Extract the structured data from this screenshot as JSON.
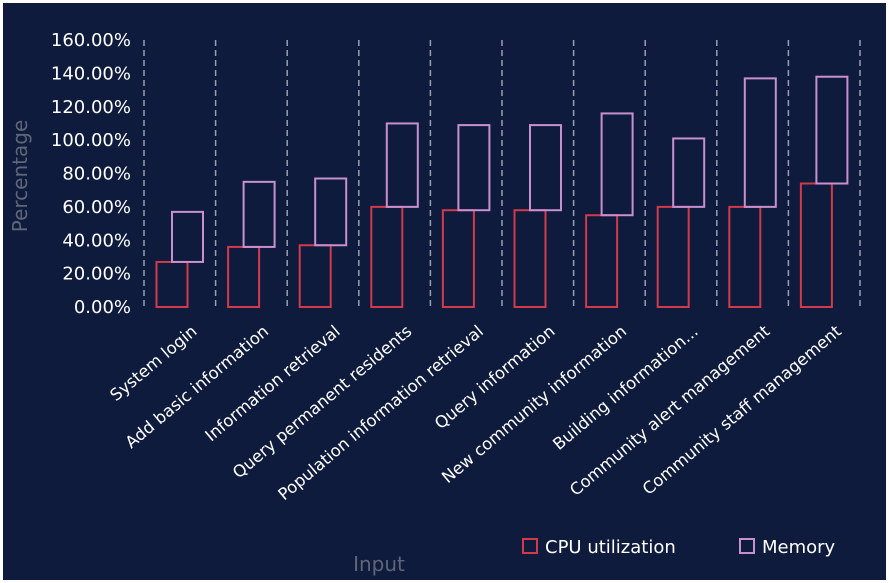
{
  "chart_data": {
    "type": "bar",
    "stacked": true,
    "title": "",
    "xlabel": "Input",
    "ylabel": "Percentage",
    "ylim": [
      0,
      160
    ],
    "yticks": [
      "0.00%",
      "20.00%",
      "40.00%",
      "60.00%",
      "80.00%",
      "100.00%",
      "120.00%",
      "140.00%",
      "160.00%"
    ],
    "grid": "vertical-dashed",
    "legend_position": "bottom-right",
    "categories": [
      "System login",
      "Add basic information",
      "Information retrieval",
      "Query permanent residents",
      "Population information retrieval",
      "Query information",
      "New community information",
      "Building information...",
      "Community alert management",
      "Community staff management"
    ],
    "series": [
      {
        "name": "CPU utilization",
        "color": "#d03a4a",
        "values": [
          27,
          36,
          37,
          60,
          58,
          58,
          55,
          60,
          60,
          74
        ]
      },
      {
        "name": "Memory",
        "color": "#c990cf",
        "values": [
          30,
          39,
          40,
          50,
          51,
          51,
          61,
          41,
          77,
          64
        ]
      }
    ],
    "colors": {
      "background": "#0e1b3d",
      "grid": "#9aa0b0",
      "text": "#ffffff",
      "axis_title": "#5e6678"
    }
  }
}
